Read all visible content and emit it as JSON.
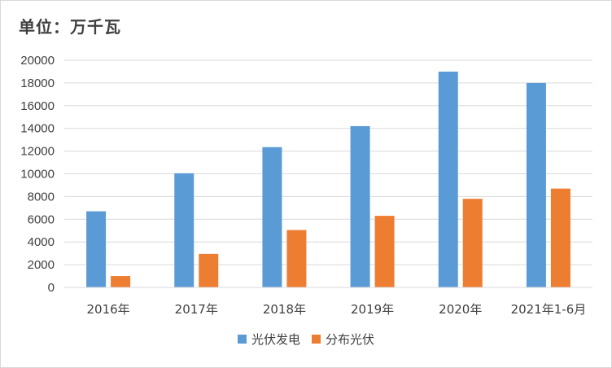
{
  "chart_data": {
    "type": "bar",
    "title": "",
    "unit_label": "单位：万千瓦",
    "xlabel": "",
    "ylabel": "",
    "categories": [
      "2016年",
      "2017年",
      "2018年",
      "2019年",
      "2020年",
      "2021年1-6月"
    ],
    "series": [
      {
        "name": "光伏发电",
        "color": "#5b9bd5",
        "values": [
          6700,
          10050,
          12350,
          14200,
          19000,
          18000
        ]
      },
      {
        "name": "分布光伏",
        "color": "#ed7d31",
        "values": [
          1000,
          2950,
          5050,
          6300,
          7800,
          8700
        ]
      }
    ],
    "ylim": [
      0,
      20000
    ],
    "yticks": [
      0,
      2000,
      4000,
      6000,
      8000,
      10000,
      12000,
      14000,
      16000,
      18000,
      20000
    ],
    "grid": true,
    "legend_position": "bottom"
  }
}
